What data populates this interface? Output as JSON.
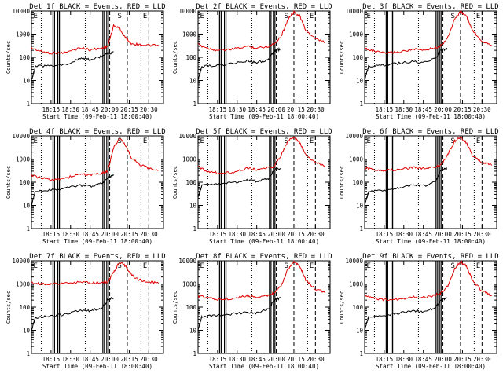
{
  "chart_data": {
    "type": "line",
    "y_scale": "log",
    "ylim": [
      1,
      10000
    ],
    "y_ticks": [
      "1",
      "10",
      "100",
      "1000",
      "10000"
    ],
    "x_ticks": [
      "18:15",
      "18:30",
      "18:45",
      "20:00",
      "20:15",
      "20:30"
    ],
    "x_tick_times": [
      0.2,
      0.4,
      0.6,
      0.8,
      1.0,
      1.2
    ],
    "xlim_time": [
      0.0,
      1.35
    ],
    "ylabel": "Counts/sec",
    "xlabel": "Start Time (09-Feb-11 18:00:40)",
    "dotted_lines": [
      0.1,
      0.55,
      1.12
    ],
    "dashed_lines": [
      0.8,
      0.98,
      1.2
    ],
    "solid_lines": [
      0.22,
      0.27,
      0.73,
      0.77
    ],
    "region_letters": [
      "E",
      "S",
      "E"
    ],
    "series_colors": {
      "black": "#000000",
      "red": "#e00000"
    },
    "panels": [
      {
        "title": "Det 1f BLACK = Events, RED = LLD",
        "red": [
          [
            0.0,
            250
          ],
          [
            0.1,
            180
          ],
          [
            0.2,
            150
          ],
          [
            0.35,
            160
          ],
          [
            0.5,
            260
          ],
          [
            0.6,
            210
          ],
          [
            0.72,
            250
          ],
          [
            0.78,
            300
          ],
          [
            0.84,
            2300
          ],
          [
            0.9,
            1800
          ],
          [
            0.96,
            700
          ],
          [
            1.02,
            400
          ],
          [
            1.1,
            350
          ],
          [
            1.2,
            330
          ],
          [
            1.3,
            320
          ]
        ],
        "black": [
          [
            0.0,
            10
          ],
          [
            0.02,
            20
          ],
          [
            0.04,
            40
          ],
          [
            0.2,
            45
          ],
          [
            0.35,
            50
          ],
          [
            0.5,
            90
          ],
          [
            0.6,
            80
          ],
          [
            0.72,
            110
          ],
          [
            0.78,
            150
          ],
          [
            0.84,
            160
          ]
        ]
      },
      {
        "title": "Det 2f BLACK = Events, RED = LLD",
        "red": [
          [
            0.0,
            350
          ],
          [
            0.1,
            250
          ],
          [
            0.2,
            200
          ],
          [
            0.35,
            220
          ],
          [
            0.5,
            300
          ],
          [
            0.6,
            250
          ],
          [
            0.72,
            300
          ],
          [
            0.78,
            400
          ],
          [
            0.85,
            800
          ],
          [
            0.92,
            4500
          ],
          [
            0.98,
            9000
          ],
          [
            1.04,
            6000
          ],
          [
            1.1,
            1500
          ],
          [
            1.2,
            600
          ],
          [
            1.3,
            450
          ]
        ],
        "black": [
          [
            0.0,
            10
          ],
          [
            0.02,
            20
          ],
          [
            0.04,
            40
          ],
          [
            0.2,
            45
          ],
          [
            0.35,
            55
          ],
          [
            0.5,
            70
          ],
          [
            0.6,
            60
          ],
          [
            0.72,
            80
          ],
          [
            0.78,
            200
          ],
          [
            0.84,
            220
          ]
        ]
      },
      {
        "title": "Det 3f BLACK = Events, RED = LLD",
        "red": [
          [
            0.0,
            250
          ],
          [
            0.1,
            180
          ],
          [
            0.2,
            150
          ],
          [
            0.35,
            170
          ],
          [
            0.5,
            220
          ],
          [
            0.6,
            200
          ],
          [
            0.72,
            260
          ],
          [
            0.78,
            320
          ],
          [
            0.85,
            700
          ],
          [
            0.92,
            4500
          ],
          [
            0.98,
            9500
          ],
          [
            1.04,
            6000
          ],
          [
            1.1,
            1500
          ],
          [
            1.2,
            500
          ],
          [
            1.3,
            350
          ]
        ],
        "black": [
          [
            0.0,
            10
          ],
          [
            0.02,
            20
          ],
          [
            0.04,
            40
          ],
          [
            0.2,
            45
          ],
          [
            0.35,
            55
          ],
          [
            0.5,
            65
          ],
          [
            0.6,
            60
          ],
          [
            0.72,
            90
          ],
          [
            0.78,
            200
          ],
          [
            0.84,
            230
          ]
        ]
      },
      {
        "title": "Det 4f BLACK = Events, RED = LLD",
        "red": [
          [
            0.0,
            200
          ],
          [
            0.1,
            150
          ],
          [
            0.2,
            130
          ],
          [
            0.35,
            150
          ],
          [
            0.5,
            230
          ],
          [
            0.6,
            200
          ],
          [
            0.72,
            250
          ],
          [
            0.78,
            300
          ],
          [
            0.84,
            3000
          ],
          [
            0.9,
            8000
          ],
          [
            0.96,
            4000
          ],
          [
            1.02,
            1200
          ],
          [
            1.1,
            600
          ],
          [
            1.2,
            400
          ],
          [
            1.3,
            330
          ]
        ],
        "black": [
          [
            0.0,
            10
          ],
          [
            0.02,
            20
          ],
          [
            0.04,
            40
          ],
          [
            0.2,
            45
          ],
          [
            0.35,
            55
          ],
          [
            0.5,
            75
          ],
          [
            0.6,
            65
          ],
          [
            0.72,
            90
          ],
          [
            0.78,
            150
          ],
          [
            0.84,
            220
          ]
        ]
      },
      {
        "title": "Det 5f BLACK = Events, RED = LLD",
        "red": [
          [
            0.0,
            450
          ],
          [
            0.1,
            300
          ],
          [
            0.2,
            250
          ],
          [
            0.35,
            270
          ],
          [
            0.5,
            400
          ],
          [
            0.6,
            350
          ],
          [
            0.72,
            420
          ],
          [
            0.78,
            500
          ],
          [
            0.85,
            1500
          ],
          [
            0.92,
            6000
          ],
          [
            0.98,
            9000
          ],
          [
            1.04,
            5000
          ],
          [
            1.1,
            1500
          ],
          [
            1.2,
            700
          ],
          [
            1.3,
            500
          ]
        ],
        "black": [
          [
            0.0,
            20
          ],
          [
            0.02,
            40
          ],
          [
            0.04,
            80
          ],
          [
            0.2,
            85
          ],
          [
            0.35,
            95
          ],
          [
            0.5,
            120
          ],
          [
            0.6,
            110
          ],
          [
            0.72,
            140
          ],
          [
            0.78,
            350
          ],
          [
            0.84,
            400
          ]
        ]
      },
      {
        "title": "Det 6f BLACK = Events, RED = LLD",
        "red": [
          [
            0.0,
            400
          ],
          [
            0.1,
            350
          ],
          [
            0.2,
            330
          ],
          [
            0.35,
            350
          ],
          [
            0.5,
            450
          ],
          [
            0.6,
            400
          ],
          [
            0.72,
            450
          ],
          [
            0.78,
            550
          ],
          [
            0.85,
            1500
          ],
          [
            0.92,
            6000
          ],
          [
            0.98,
            9000
          ],
          [
            1.04,
            5000
          ],
          [
            1.1,
            1500
          ],
          [
            1.2,
            700
          ],
          [
            1.3,
            550
          ]
        ],
        "black": [
          [
            0.0,
            10
          ],
          [
            0.02,
            20
          ],
          [
            0.04,
            40
          ],
          [
            0.2,
            45
          ],
          [
            0.35,
            55
          ],
          [
            0.5,
            75
          ],
          [
            0.6,
            70
          ],
          [
            0.72,
            100
          ],
          [
            0.78,
            350
          ],
          [
            0.84,
            400
          ]
        ]
      },
      {
        "title": "Det 7f BLACK = Events, RED = LLD",
        "red": [
          [
            0.0,
            1100
          ],
          [
            0.1,
            1000
          ],
          [
            0.2,
            1000
          ],
          [
            0.35,
            1050
          ],
          [
            0.5,
            1200
          ],
          [
            0.6,
            1100
          ],
          [
            0.72,
            1150
          ],
          [
            0.78,
            1200
          ],
          [
            0.84,
            3000
          ],
          [
            0.9,
            9000
          ],
          [
            0.96,
            6000
          ],
          [
            1.02,
            2500
          ],
          [
            1.1,
            1500
          ],
          [
            1.2,
            1200
          ],
          [
            1.3,
            1150
          ]
        ],
        "black": [
          [
            0.0,
            10
          ],
          [
            0.02,
            20
          ],
          [
            0.04,
            35
          ],
          [
            0.2,
            40
          ],
          [
            0.35,
            50
          ],
          [
            0.5,
            75
          ],
          [
            0.6,
            70
          ],
          [
            0.72,
            90
          ],
          [
            0.78,
            200
          ],
          [
            0.84,
            250
          ]
        ]
      },
      {
        "title": "Det 8f BLACK = Events, RED = LLD",
        "red": [
          [
            0.0,
            300
          ],
          [
            0.1,
            250
          ],
          [
            0.2,
            220
          ],
          [
            0.35,
            230
          ],
          [
            0.5,
            300
          ],
          [
            0.6,
            280
          ],
          [
            0.72,
            320
          ],
          [
            0.78,
            400
          ],
          [
            0.85,
            800
          ],
          [
            0.92,
            4500
          ],
          [
            0.98,
            9000
          ],
          [
            1.04,
            6000
          ],
          [
            1.1,
            1500
          ],
          [
            1.2,
            600
          ],
          [
            1.3,
            450
          ]
        ],
        "black": [
          [
            0.0,
            10
          ],
          [
            0.02,
            20
          ],
          [
            0.04,
            40
          ],
          [
            0.2,
            45
          ],
          [
            0.35,
            50
          ],
          [
            0.5,
            60
          ],
          [
            0.6,
            55
          ],
          [
            0.72,
            80
          ],
          [
            0.78,
            200
          ],
          [
            0.84,
            250
          ]
        ]
      },
      {
        "title": "Det 9f BLACK = Events, RED = LLD",
        "red": [
          [
            0.0,
            300
          ],
          [
            0.1,
            250
          ],
          [
            0.2,
            200
          ],
          [
            0.35,
            220
          ],
          [
            0.5,
            280
          ],
          [
            0.6,
            260
          ],
          [
            0.72,
            320
          ],
          [
            0.78,
            400
          ],
          [
            0.85,
            800
          ],
          [
            0.92,
            4500
          ],
          [
            0.98,
            9000
          ],
          [
            1.04,
            6000
          ],
          [
            1.1,
            1500
          ],
          [
            1.2,
            500
          ],
          [
            1.3,
            300
          ]
        ],
        "black": [
          [
            0.0,
            10
          ],
          [
            0.02,
            20
          ],
          [
            0.04,
            40
          ],
          [
            0.2,
            45
          ],
          [
            0.35,
            55
          ],
          [
            0.5,
            70
          ],
          [
            0.6,
            65
          ],
          [
            0.72,
            90
          ],
          [
            0.78,
            200
          ],
          [
            0.84,
            250
          ]
        ]
      }
    ]
  }
}
